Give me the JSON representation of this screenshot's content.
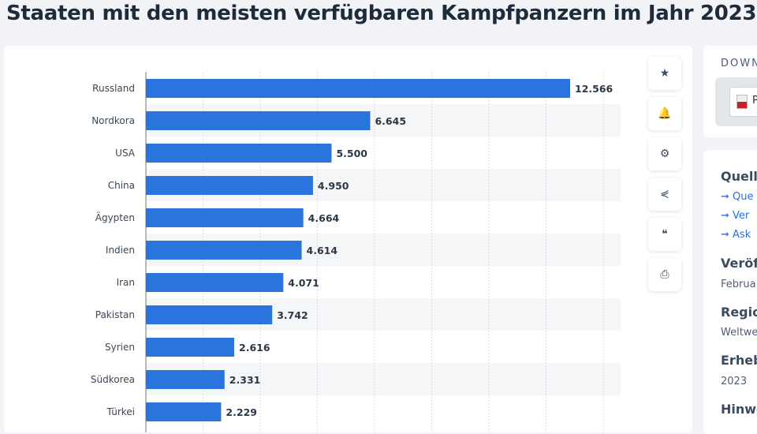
{
  "title": "Staaten mit den meisten verfügbaren Kampfpanzern im Jahr 2023",
  "actions": [
    {
      "name": "favorite",
      "icon": "★"
    },
    {
      "name": "notify",
      "icon": "🔔"
    },
    {
      "name": "settings",
      "icon": "⚙"
    },
    {
      "name": "share",
      "icon": "⋞"
    },
    {
      "name": "cite",
      "icon": "❝"
    },
    {
      "name": "print",
      "icon": "⎙"
    }
  ],
  "download": {
    "heading": "DOWN",
    "pdf_label": "P"
  },
  "info": {
    "source_heading": "Quell",
    "links": [
      "Que",
      "Ver",
      "Ask"
    ],
    "release_heading": "Veröf",
    "release_value": "Februa",
    "region_heading": "Regio",
    "region_value": "Weltwe",
    "survey_heading": "Erheb",
    "survey_value": "2023",
    "note_heading": "Hinwe"
  },
  "chart_data": {
    "type": "bar",
    "orientation": "horizontal",
    "categories": [
      "Russland",
      "Nordkora",
      "USA",
      "China",
      "Ägypten",
      "Indien",
      "Iran",
      "Pakistan",
      "Syrien",
      "Südkorea",
      "Türkei"
    ],
    "values": [
      12566,
      6645,
      5500,
      4950,
      4664,
      4614,
      4071,
      3742,
      2616,
      2331,
      2229
    ],
    "labels": [
      "12.566",
      "6.645",
      "5.500",
      "4.950",
      "4.664",
      "4.614",
      "4.071",
      "3.742",
      "2.616",
      "2.331",
      "2.229"
    ],
    "bar_color": "#2a75dd",
    "grid": true
  }
}
